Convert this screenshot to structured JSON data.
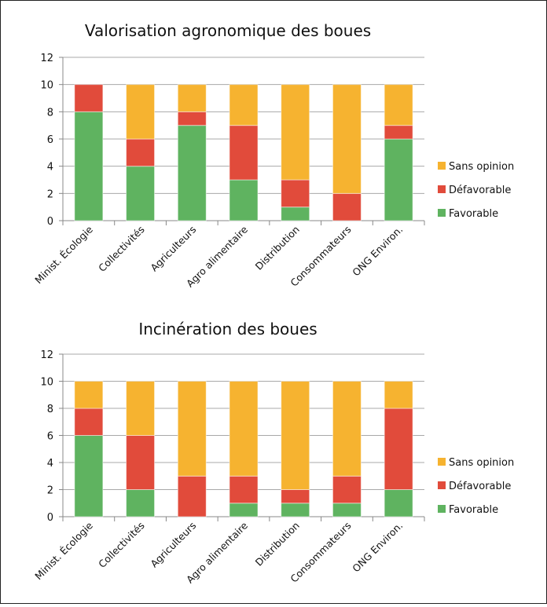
{
  "chart_data": [
    {
      "type": "bar",
      "stacked": true,
      "title": "Valorisation agronomique des boues",
      "categories": [
        "Minist. Écologie",
        "Collectivités",
        "Agriculteurs",
        "Agro alimentaire",
        "Distribution",
        "Consommateurs",
        "ONG Environ."
      ],
      "series": [
        {
          "name": "Favorable",
          "color": "#5fb360",
          "values": [
            8,
            4,
            7,
            3,
            1,
            0,
            6
          ]
        },
        {
          "name": "Défavorable",
          "color": "#e14b3b",
          "values": [
            2,
            2,
            1,
            4,
            2,
            2,
            1
          ]
        },
        {
          "name": "Sans opinion",
          "color": "#f6b330",
          "values": [
            0,
            4,
            2,
            3,
            7,
            8,
            3
          ]
        }
      ],
      "ylim": [
        0,
        12
      ],
      "yticks": [
        0,
        2,
        4,
        6,
        8,
        10,
        12
      ],
      "grid": true,
      "legend": "right"
    },
    {
      "type": "bar",
      "stacked": true,
      "title": "Incinération des boues",
      "categories": [
        "Minist. Écologie",
        "Collectivités",
        "Agriculteurs",
        "Agro alimentaire",
        "Distribution",
        "Consommateurs",
        "ONG Environ."
      ],
      "series": [
        {
          "name": "Favorable",
          "color": "#5fb360",
          "values": [
            6,
            2,
            0,
            1,
            1,
            1,
            2
          ]
        },
        {
          "name": "Défavorable",
          "color": "#e14b3b",
          "values": [
            2,
            4,
            3,
            2,
            1,
            2,
            6
          ]
        },
        {
          "name": "Sans opinion",
          "color": "#f6b330",
          "values": [
            2,
            4,
            7,
            7,
            8,
            7,
            2
          ]
        }
      ],
      "ylim": [
        0,
        12
      ],
      "yticks": [
        0,
        2,
        4,
        6,
        8,
        10,
        12
      ],
      "grid": true,
      "legend": "right"
    }
  ]
}
